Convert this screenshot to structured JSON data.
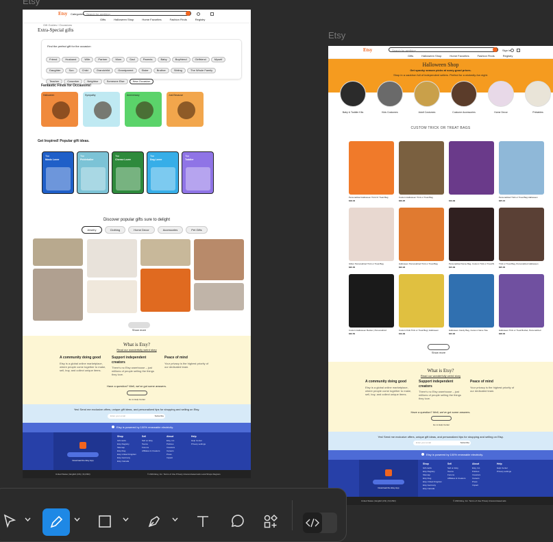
{
  "frames": [
    {
      "label": "Etsy"
    },
    {
      "label": "Etsy"
    }
  ],
  "left": {
    "header": {
      "logo": "Etsy",
      "search_placeholder": "Search for anything",
      "categories": "Categories"
    },
    "nav": [
      "Gifts",
      "Halloween Shop",
      "Home Favorites",
      "Fashion Finds",
      "Registry"
    ],
    "breadcrumb": "Gift Guides / Occasions",
    "title": "Extra-Special gifts",
    "search_prompt": "Find the perfect gift for the occasion",
    "chips": [
      "Friend",
      "Husband",
      "Wife",
      "Partner",
      "Mom",
      "Dad",
      "Parents",
      "Baby",
      "Boyfriend",
      "Girlfriend",
      "Myself",
      "Daughter",
      "Son",
      "Child",
      "Grandchild",
      "Grandparent",
      "Sister",
      "Brother",
      "Sibling",
      "The Whole Family",
      "Teacher",
      "Coworker",
      "Neighbor",
      "Someone Else",
      "New Occasion"
    ],
    "traits_heading": "Fantastic Finds for Occasions!",
    "traits": [
      {
        "label": "Halloween",
        "color": "#f08a3c"
      },
      {
        "label": "Sympathy",
        "color": "#bfe9f2"
      },
      {
        "label": "Anniversary",
        "color": "#5bd36a"
      },
      {
        "label": "Just Because",
        "color": "#f2a64c"
      }
    ],
    "inspired_heading": "Get Inspired! Popular gift ideas.",
    "inspired": [
      {
        "top": "The",
        "label": "Music Lover",
        "color": "#1f5fc8"
      },
      {
        "top": "The",
        "label": "Pickleballer",
        "color": "#7cc3d6"
      },
      {
        "top": "The",
        "label": "Cheese Lover",
        "color": "#2e8a3c"
      },
      {
        "top": "The",
        "label": "Dog Lover",
        "color": "#37aee8"
      },
      {
        "top": "The",
        "label": "Toddler",
        "color": "#8f74e6"
      }
    ],
    "discover_heading": "Discover popular gifts sure to delight",
    "discover_tabs": [
      "Jewelry",
      "Clothing",
      "Home Decor",
      "Accessories",
      "Pet Gifts"
    ],
    "show_more": "Show more",
    "what_is": {
      "title": "What is Etsy?",
      "subtitle": "Read our wonderfully weird story",
      "cols": [
        {
          "h": "A community doing good",
          "t": "Etsy is a global online marketplace, where people come together to make, sell, buy, and collect unique items."
        },
        {
          "h": "Support independent creators",
          "t": "There's no Etsy warehouse – just millions of people selling the things they love."
        },
        {
          "h": "Peace of mind",
          "t": "Your privacy is the highest priority of our dedicated team."
        }
      ],
      "help": "Have a question? Well, we've got some answers.",
      "help_btn": "Go to Help Center"
    },
    "newsletter": {
      "text": "Yes! Send me exclusive offers, unique gift ideas, and personalized tips for shopping and selling on Etsy.",
      "placeholder": "Enter your email",
      "button": "Subscribe"
    },
    "renewable": "Etsy is powered by 100% renewable electricity.",
    "footer": {
      "app_button": "Download the Etsy App",
      "cols": [
        {
          "h": "Shop",
          "items": [
            "Gift cards",
            "Etsy Registry",
            "Sitemap",
            "Etsy blog",
            "Etsy United Kingdom",
            "Etsy Germany",
            "Etsy Canada"
          ]
        },
        {
          "h": "Sell",
          "items": [
            "Sell on Etsy",
            "Teams",
            "Forums",
            "Affiliates & Creators"
          ]
        },
        {
          "h": "About",
          "items": [
            "Etsy, Inc.",
            "Policies",
            "Investors",
            "Careers",
            "Press",
            "Impact"
          ]
        },
        {
          "h": "Help",
          "items": [
            "Help Center",
            "Privacy settings"
          ]
        }
      ],
      "bottom_left": "United States | English (US) | $ (USD)",
      "bottom_right": "© 2024 Etsy, Inc.  Terms of Use  Privacy  Interest-based ads  Local Shops  Regions"
    }
  },
  "right": {
    "header": {
      "logo": "Etsy",
      "search_placeholder": "Search for anything",
      "sign_in": "Sign in"
    },
    "nav": [
      "Gifts",
      "Halloween Shop",
      "Home Favorites",
      "Fashion Finds",
      "Registry"
    ],
    "hero": {
      "title": "Halloween Shop",
      "subtitle": "Get spooky season picks at scary-good prices.",
      "sub2": "Shop in a cauldron full of independent sellers. Perfect for a wickedly-fun night."
    },
    "circles": [
      {
        "label": "Baby & Toddler Kits",
        "color": "#2b2b2b"
      },
      {
        "label": "Kids Costumes",
        "color": "#6a6a6a"
      },
      {
        "label": "Adult Costumes",
        "color": "#c9a04a"
      },
      {
        "label": "Costume Accessories",
        "color": "#5b3c2a"
      },
      {
        "label": "Home Decor",
        "color": "#e8d9e8"
      },
      {
        "label": "Printables",
        "color": "#e9e4d8"
      }
    ],
    "section_title": "CUSTOM TRICK OR TREAT BAGS",
    "products": [
      {
        "title": "Personalized Halloween Trick Or Treat Bag",
        "price": "$18.40",
        "color": "#f07a2a"
      },
      {
        "title": "Custom Halloween Trick or Treat Bag",
        "price": "$29.95",
        "color": "#7a6040"
      },
      {
        "title": "",
        "price": "$19.99",
        "color": "#6a3a8a"
      },
      {
        "title": "Personalized Trick or Treat Bag Halloween",
        "price": "$25.16",
        "color": "#8fb8d8"
      },
      {
        "title": "Glitter Personalized Trick or Treat Bag",
        "price": "$20.00",
        "color": "#e8d8d0"
      },
      {
        "title": "Halloween Personalized Trick or Treat Bag",
        "price": "$22.93",
        "color": "#e07a30"
      },
      {
        "title": "Personalized Name Bag, Custom Trick or Treat Bag",
        "price": "$15.99",
        "color": "#302020"
      },
      {
        "title": "Trick or Treat Bag, Personalized Halloween",
        "price": "$25.00",
        "color": "#5a4035"
      },
      {
        "title": "Custom Halloween Bucket | Personalized",
        "price": "$32.50",
        "color": "#1a1a1a"
      },
      {
        "title": "Custom Kids Trick or Treat Bag | Halloween",
        "price": "$19.99",
        "color": "#e0c040"
      },
      {
        "title": "Halloween Candy Bag, Custom Name Tote",
        "price": "$22.90",
        "color": "#3070b0"
      },
      {
        "title": "Halloween Trick or Treat Bucket, Personalized",
        "price": "$28.00",
        "color": "#7050a0"
      }
    ],
    "show_more": "Show more",
    "what_is": {
      "title": "What is Etsy?",
      "subtitle": "Read our wonderfully weird story",
      "cols": [
        {
          "h": "A community doing good",
          "t": "Etsy is a global online marketplace, where people come together to make, sell, buy, and collect unique items."
        },
        {
          "h": "Support independent creators",
          "t": "There's no Etsy warehouse – just millions of people selling the things they love."
        },
        {
          "h": "Peace of mind",
          "t": "Your privacy is the highest priority of our dedicated team."
        }
      ],
      "help": "Have a question? Well, we've got some answers.",
      "help_btn": "Go to Help Center"
    },
    "newsletter": {
      "text": "Yes! Send me exclusive offers, unique gift ideas, and personalized tips for shopping and selling on Etsy.",
      "placeholder": "Enter your email",
      "button": "Subscribe"
    },
    "renewable": "Etsy is powered by 100% renewable electricity.",
    "footer": {
      "app_button": "Download the Etsy App",
      "cols": [
        {
          "h": "Shop",
          "items": [
            "Gift cards",
            "Etsy Registry",
            "Sitemap",
            "Etsy blog",
            "Etsy United Kingdom",
            "Etsy Germany",
            "Etsy Canada"
          ]
        },
        {
          "h": "Sell",
          "items": [
            "Sell on Etsy",
            "Teams",
            "Forums",
            "Affiliates & Creators"
          ]
        },
        {
          "h": "About",
          "items": [
            "Etsy, Inc.",
            "Policies",
            "Investors",
            "Careers",
            "Press",
            "Impact"
          ]
        },
        {
          "h": "Help",
          "items": [
            "Help Center",
            "Privacy settings"
          ]
        }
      ],
      "bottom_left": "United States | English (US) | $ (USD)",
      "bottom_right": "© 2024 Etsy, Inc.  Terms of Use  Privacy  Interest-based ads"
    }
  },
  "toolbar": {
    "tools": [
      "move-tool",
      "pen-draw-tool",
      "rectangle-tool",
      "pen-tool",
      "text-tool",
      "comment-tool",
      "components-tool",
      "code-view-toggle"
    ],
    "accent": "#1e88e5"
  }
}
